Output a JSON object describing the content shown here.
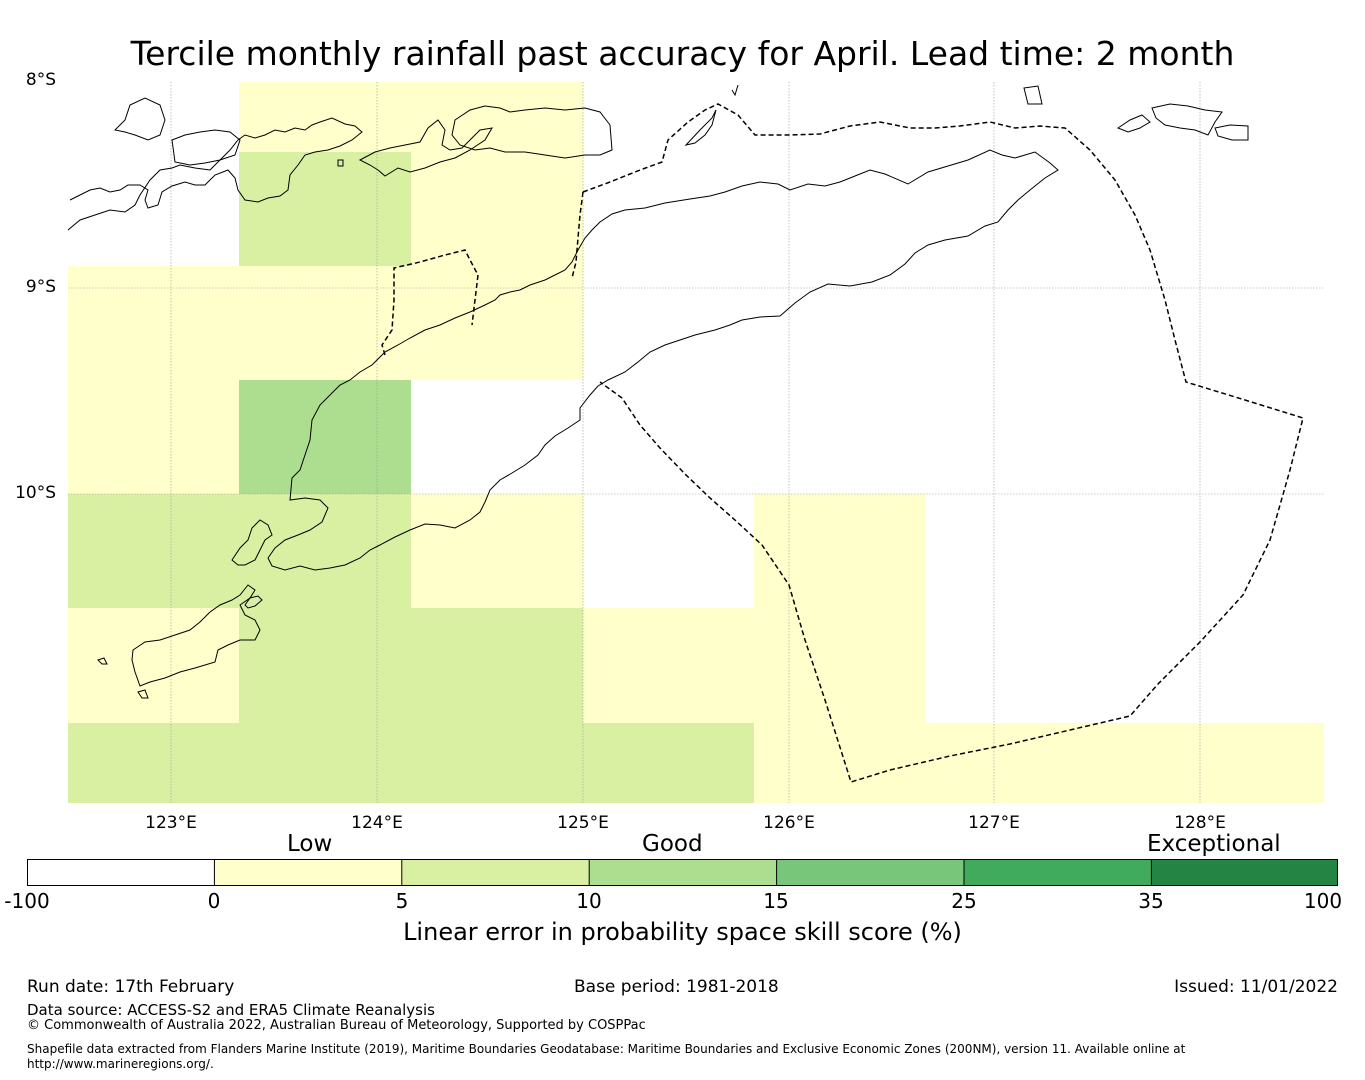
{
  "title": "Tercile monthly rainfall past accuracy for April. Lead time: 2 month",
  "map": {
    "lat_labels": [
      "8°S",
      "9°S",
      "10°S"
    ],
    "lon_labels": [
      "123°E",
      "124°E",
      "125°E",
      "126°E",
      "127°E",
      "128°E"
    ],
    "legend_colors": {
      "white": "#ffffff",
      "yellow": "#ffffcc",
      "lightgreen": "#d9f0a3",
      "green": "#addd8e"
    }
  },
  "colorbar": {
    "categories": [
      "Low",
      "Good",
      "Exceptional"
    ],
    "ticks": [
      "-100",
      "0",
      "5",
      "10",
      "15",
      "25",
      "35",
      "100"
    ],
    "colors": [
      "#ffffff",
      "#ffffcc",
      "#d9f0a3",
      "#addd8e",
      "#78c679",
      "#41ab5d",
      "#238443"
    ],
    "label": "Linear error in probability space skill score (%)"
  },
  "footer": {
    "run_date": "Run date: 17th February",
    "base_period": "Base period: 1981-2018",
    "issued": "Issued: 11/01/2022",
    "data_source": "Data source: ACCESS-S2 and ERA5 Climate Reanalysis",
    "copyright": "© Commonwealth of Australia 2022, Australian Bureau of Meteorology, Supported by COSPPac",
    "shapefile_line1": "Shapefile data extracted from Flanders Marine Institute (2019), Maritime Boundaries Geodatabase: Maritime Boundaries and Exclusive Economic Zones (200NM), version 11. Available online at",
    "shapefile_line2": "http://www.marineregions.org/."
  }
}
